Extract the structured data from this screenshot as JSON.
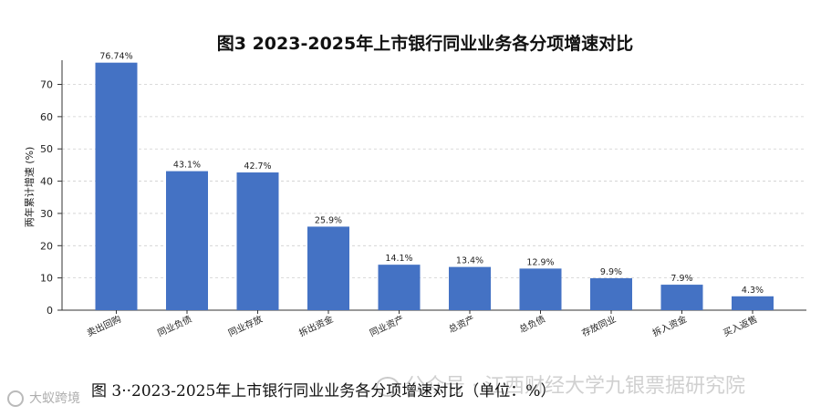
{
  "chart_data": {
    "type": "bar",
    "title": "图3  2023-2025年上市银行同业业务各分项增速对比",
    "ylabel": "两年累计增速 (%)",
    "xlabel": "",
    "categories": [
      "卖出回购",
      "同业负债",
      "同业存放",
      "拆出资金",
      "同业资产",
      "总资产",
      "总负债",
      "存放同业",
      "拆入资金",
      "买入返售"
    ],
    "values": [
      76.74,
      43.1,
      42.7,
      25.9,
      14.1,
      13.4,
      12.9,
      9.9,
      7.9,
      4.3
    ],
    "value_labels": [
      "76.74%",
      "43.1%",
      "42.7%",
      "25.9%",
      "14.1%",
      "13.4%",
      "12.9%",
      "9.9%",
      "7.9%",
      "4.3%"
    ],
    "ylim": [
      0,
      77.5
    ],
    "yticks": [
      0,
      10,
      20,
      30,
      40,
      50,
      60,
      70
    ],
    "grid": true,
    "bar_color": "#4472C4"
  },
  "caption": "图 3··2023-2025年上市银行同业业务各分项增速对比（单位：%）",
  "watermark": "公众号 · 江西财经大学九银票据研究院",
  "brand": "大蚁跨境",
  "wm_icon": "wechat-icon",
  "brand_icon": "brand-logo-icon"
}
